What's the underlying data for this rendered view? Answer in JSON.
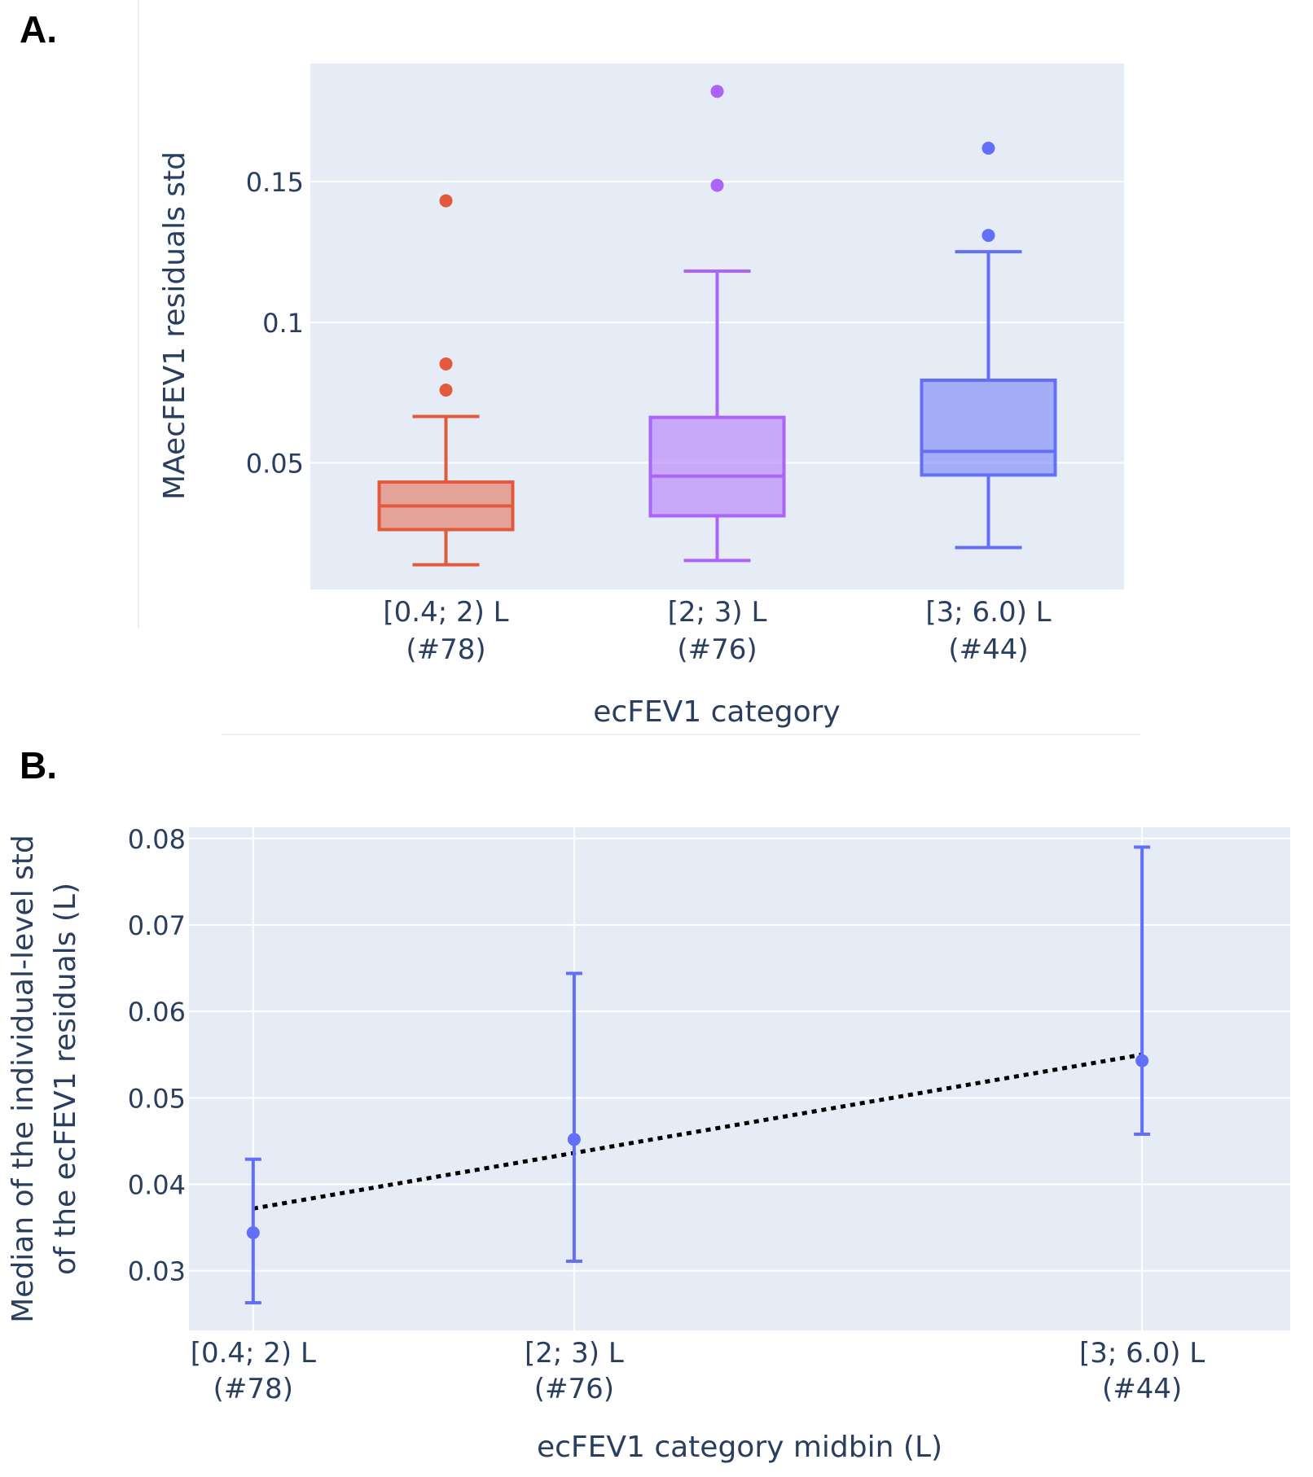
{
  "figure": {
    "panel_a_label": "A.",
    "panel_b_label": "B."
  },
  "chart_data": [
    {
      "type": "box",
      "panel": "A.",
      "xlabel": "ecFEV1 category",
      "ylabel": "MAecFEV1 residuals std",
      "ylim": [
        0.005,
        0.192
      ],
      "yticks": [
        {
          "value": 0.05,
          "label": "0.05"
        },
        {
          "value": 0.1,
          "label": "0.1"
        },
        {
          "value": 0.15,
          "label": "0.15"
        }
      ],
      "grid": true,
      "series": [
        {
          "category": "[0.4; 2) L",
          "count": "(#78)",
          "color": "#e25a3b",
          "lower_fence": 0.0138,
          "q1": 0.0263,
          "median": 0.0347,
          "q3": 0.0432,
          "upper_fence": 0.0665,
          "outliers": [
            0.1432,
            0.0852,
            0.0759
          ]
        },
        {
          "category": "[2; 3) L",
          "count": "(#76)",
          "color": "#ab63fa",
          "lower_fence": 0.0153,
          "q1": 0.0312,
          "median": 0.0453,
          "q3": 0.0662,
          "upper_fence": 0.1182,
          "outliers": [
            0.1821,
            0.1487
          ]
        },
        {
          "category": "[3; 6.0) L",
          "count": "(#44)",
          "color": "#636efa",
          "lower_fence": 0.0199,
          "q1": 0.0457,
          "median": 0.0541,
          "q3": 0.0794,
          "upper_fence": 0.1251,
          "outliers": [
            0.1619,
            0.1309
          ]
        }
      ]
    },
    {
      "type": "scatter",
      "panel": "B.",
      "xlabel": "ecFEV1 category midbin (L)",
      "ylabel_lines": [
        "Median of the individual-level std",
        "of the ecFEV1 residuals (L)"
      ],
      "xlim": [
        0.94,
        5.4
      ],
      "ylim": [
        0.0231,
        0.0813
      ],
      "yticks": [
        {
          "value": 0.03,
          "label": "0.03"
        },
        {
          "value": 0.04,
          "label": "0.04"
        },
        {
          "value": 0.05,
          "label": "0.05"
        },
        {
          "value": 0.06,
          "label": "0.06"
        },
        {
          "value": 0.07,
          "label": "0.07"
        },
        {
          "value": 0.08,
          "label": "0.08"
        }
      ],
      "grid": true,
      "marker_color": "#636efa",
      "points": [
        {
          "x": 1.2,
          "label": "[0.4; 2) L",
          "count": "(#78)",
          "y": 0.0344,
          "err_low": 0.0263,
          "err_high": 0.0429
        },
        {
          "x": 2.5,
          "label": "[2; 3) L",
          "count": "(#76)",
          "y": 0.0452,
          "err_low": 0.0311,
          "err_high": 0.0644
        },
        {
          "x": 4.8,
          "label": "[3; 6.0) L",
          "count": "(#44)",
          "y": 0.0543,
          "err_low": 0.0458,
          "err_high": 0.079
        }
      ],
      "trend_line": {
        "x": [
          1.2,
          4.8
        ],
        "y": [
          0.0372,
          0.055
        ],
        "style": "dotted",
        "color": "#000000"
      }
    }
  ]
}
